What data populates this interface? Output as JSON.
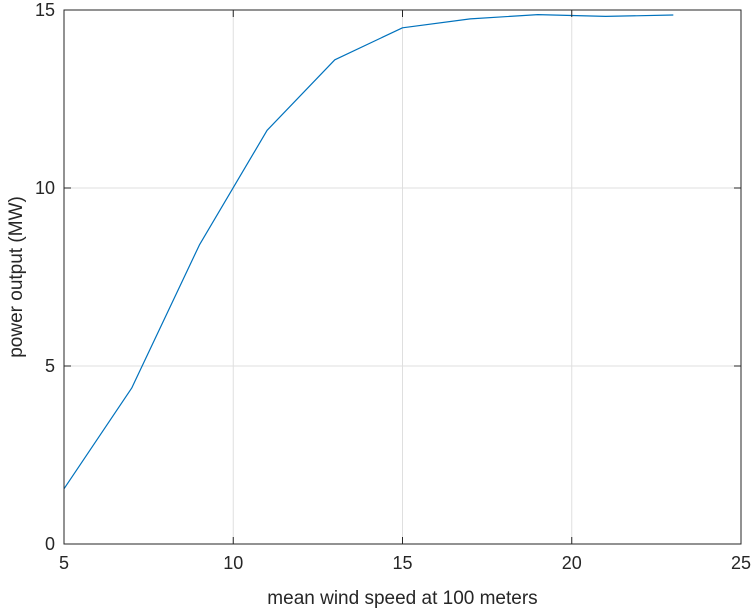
{
  "chart_data": {
    "type": "line",
    "xlabel": "mean wind speed at 100 meters",
    "ylabel": "power output (MW)",
    "xlim": [
      5,
      25
    ],
    "ylim": [
      0,
      15
    ],
    "xticks": [
      5,
      10,
      15,
      20,
      25
    ],
    "yticks": [
      0,
      5,
      10,
      15
    ],
    "grid": true,
    "series": [
      {
        "color": "#0072BD",
        "x": [
          5,
          7,
          9,
          11,
          13,
          15,
          17,
          19,
          21,
          23
        ],
        "y": [
          1.55,
          4.38,
          8.4,
          11.62,
          13.6,
          14.5,
          14.75,
          14.87,
          14.82,
          14.86
        ]
      }
    ]
  }
}
